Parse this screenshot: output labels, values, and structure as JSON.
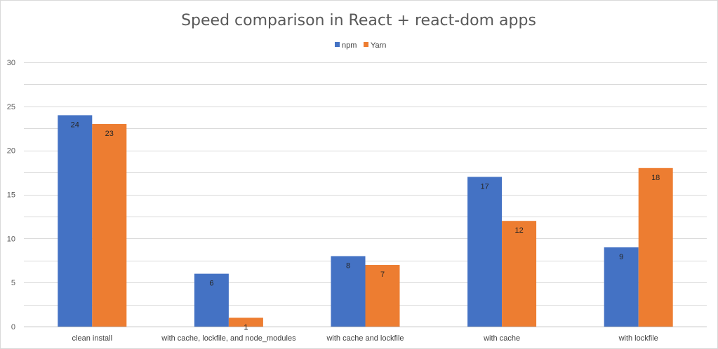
{
  "chart_data": {
    "type": "bar",
    "title": "Speed comparison in React + react-dom apps",
    "xlabel": "",
    "ylabel": "",
    "categories": [
      "clean install",
      "with cache, lockfile, and node_modules",
      "with cache and lockfile",
      "with cache",
      "with lockfile"
    ],
    "series": [
      {
        "name": "npm",
        "color": "#4472C4",
        "values": [
          24,
          6,
          8,
          17,
          9
        ]
      },
      {
        "name": "Yarn",
        "color": "#ED7D31",
        "values": [
          23,
          1,
          7,
          12,
          18
        ]
      }
    ],
    "ylim": [
      0,
      30
    ],
    "yticks": [
      0,
      5,
      10,
      15,
      20,
      25,
      30
    ],
    "grid": true,
    "legend_position": "top-center",
    "data_labels": true
  }
}
